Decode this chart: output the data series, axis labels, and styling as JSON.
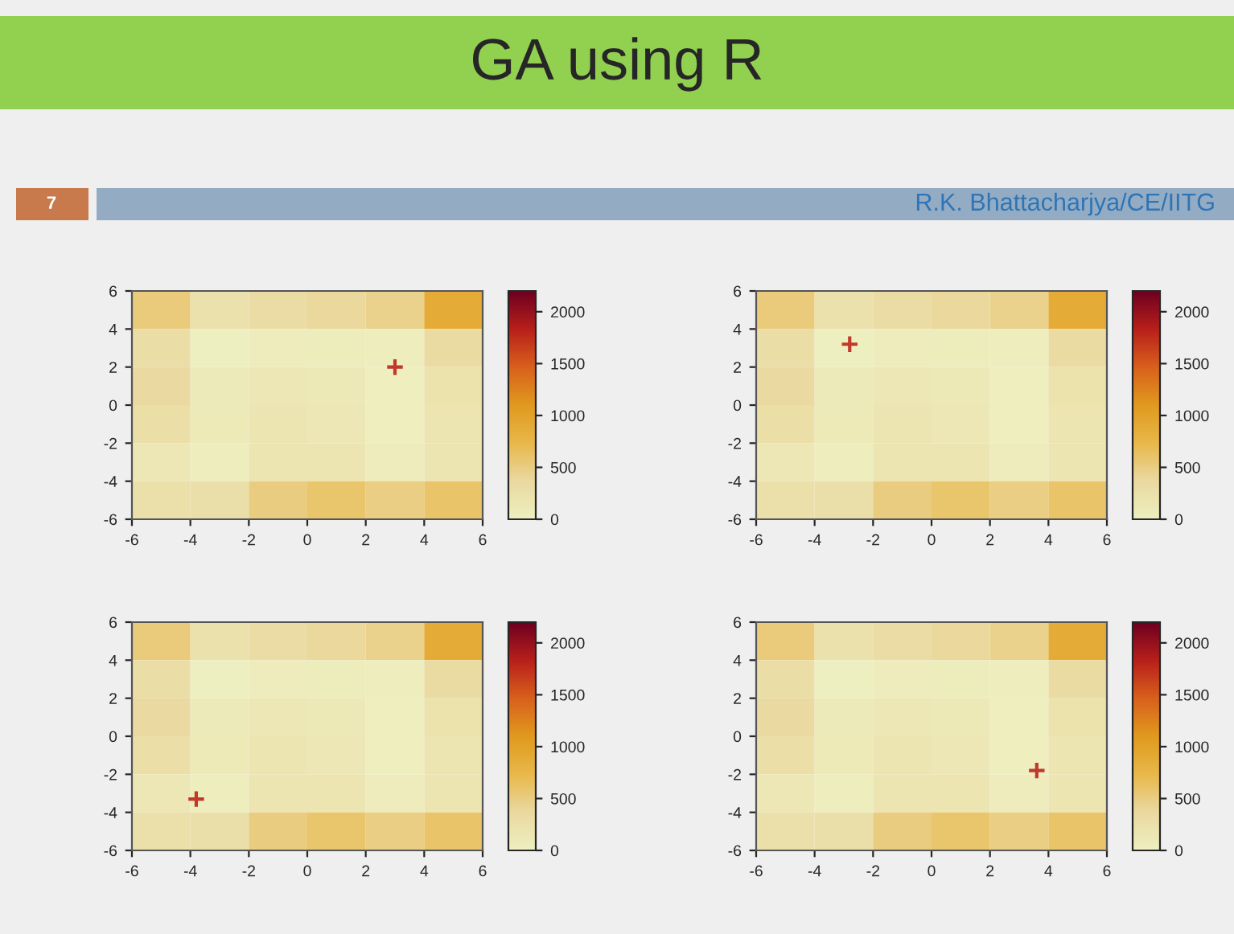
{
  "chart_data": [
    {
      "type": "heatmap",
      "title": "GA using R",
      "annotations": [
        "7",
        "R.K. Bhattacharjya/CE/IITG"
      ],
      "cells": [
        [
          530,
          234,
          314,
          386,
          450,
          890
        ],
        [
          298,
          2,
          50,
          58,
          26,
          338
        ],
        [
          346,
          82,
          130,
          106,
          10,
          226
        ],
        [
          290,
          90,
          170,
          146,
          18,
          170
        ],
        [
          130,
          26,
          170,
          178,
          50,
          170
        ],
        [
          250,
          274,
          514,
          586,
          490,
          610
        ]
      ],
      "clim": [
        0,
        2200
      ],
      "cticks": [
        0,
        500,
        1000,
        1500,
        2000
      ],
      "xlim": [
        -6,
        6
      ],
      "ylim": [
        -6,
        6
      ],
      "xticks": [
        -6,
        -4,
        -2,
        0,
        2,
        4,
        6
      ],
      "yticks": [
        -6,
        -4,
        -2,
        0,
        2,
        4,
        6
      ],
      "marker": "cross",
      "series": [
        {
          "type": "scatter",
          "x": [
            3
          ],
          "values": [
            2
          ],
          "color": "#c0392b"
        }
      ]
    },
    {
      "type": "heatmap",
      "cells": [
        [
          530,
          234,
          314,
          386,
          450,
          890
        ],
        [
          298,
          2,
          50,
          58,
          26,
          338
        ],
        [
          346,
          82,
          130,
          106,
          10,
          226
        ],
        [
          290,
          90,
          170,
          146,
          18,
          170
        ],
        [
          130,
          26,
          170,
          178,
          50,
          170
        ],
        [
          250,
          274,
          514,
          586,
          490,
          610
        ]
      ],
      "clim": [
        0,
        2200
      ],
      "cticks": [
        0,
        500,
        1000,
        1500,
        2000
      ],
      "xlim": [
        -6,
        6
      ],
      "ylim": [
        -6,
        6
      ],
      "xticks": [
        -6,
        -4,
        -2,
        0,
        2,
        4,
        6
      ],
      "yticks": [
        -6,
        -4,
        -2,
        0,
        2,
        4,
        6
      ],
      "marker": "cross",
      "series": [
        {
          "type": "scatter",
          "x": [
            -2.8
          ],
          "values": [
            3.2
          ],
          "color": "#c0392b"
        }
      ]
    },
    {
      "type": "heatmap",
      "cells": [
        [
          530,
          234,
          314,
          386,
          450,
          890
        ],
        [
          298,
          2,
          50,
          58,
          26,
          338
        ],
        [
          346,
          82,
          130,
          106,
          10,
          226
        ],
        [
          290,
          90,
          170,
          146,
          18,
          170
        ],
        [
          130,
          26,
          170,
          178,
          50,
          170
        ],
        [
          250,
          274,
          514,
          586,
          490,
          610
        ]
      ],
      "clim": [
        0,
        2200
      ],
      "cticks": [
        0,
        500,
        1000,
        1500,
        2000
      ],
      "xlim": [
        -6,
        6
      ],
      "ylim": [
        -6,
        6
      ],
      "xticks": [
        -6,
        -4,
        -2,
        0,
        2,
        4,
        6
      ],
      "yticks": [
        -6,
        -4,
        -2,
        0,
        2,
        4,
        6
      ],
      "marker": "cross",
      "series": [
        {
          "type": "scatter",
          "x": [
            -3.8
          ],
          "values": [
            -3.3
          ],
          "color": "#c0392b"
        }
      ]
    },
    {
      "type": "heatmap",
      "cells": [
        [
          530,
          234,
          314,
          386,
          450,
          890
        ],
        [
          298,
          2,
          50,
          58,
          26,
          338
        ],
        [
          346,
          82,
          130,
          106,
          10,
          226
        ],
        [
          290,
          90,
          170,
          146,
          18,
          170
        ],
        [
          130,
          26,
          170,
          178,
          50,
          170
        ],
        [
          250,
          274,
          514,
          586,
          490,
          610
        ]
      ],
      "clim": [
        0,
        2200
      ],
      "cticks": [
        0,
        500,
        1000,
        1500,
        2000
      ],
      "xlim": [
        -6,
        6
      ],
      "ylim": [
        -6,
        6
      ],
      "xticks": [
        -6,
        -4,
        -2,
        0,
        2,
        4,
        6
      ],
      "yticks": [
        -6,
        -4,
        -2,
        0,
        2,
        4,
        6
      ],
      "marker": "cross",
      "series": [
        {
          "type": "scatter",
          "x": [
            3.6
          ],
          "values": [
            -1.8
          ],
          "color": "#c0392b"
        }
      ]
    }
  ]
}
